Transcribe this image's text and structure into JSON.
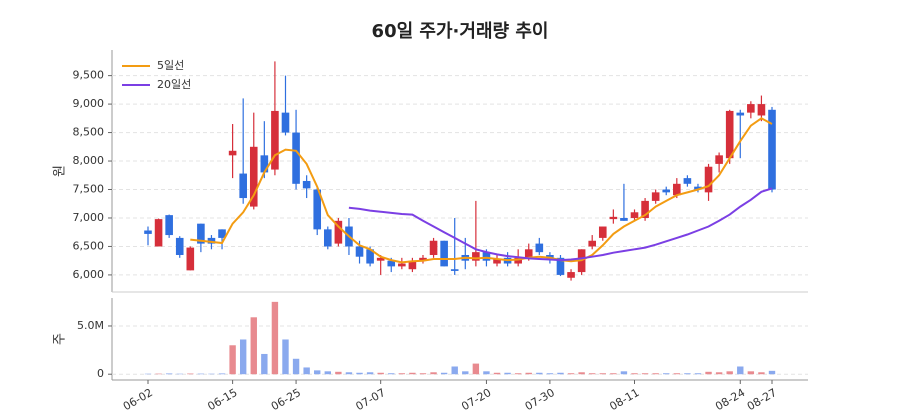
{
  "chart_data": [
    {
      "type": "candlestick",
      "title": "60일 주가·거래량 추이",
      "ylabel": "원",
      "up_color": "#d62f3a",
      "down_color": "#2f6fdf",
      "open": [
        6780,
        6500,
        7050,
        6650,
        6080,
        6900,
        6650,
        6800,
        8100,
        7780,
        7200,
        8100,
        7850,
        8850,
        8500,
        7650,
        7500,
        6800,
        6550,
        6850,
        6500,
        6450,
        6250,
        6250,
        6150,
        6100,
        6250,
        6350,
        6600,
        6100,
        6350,
        6250,
        6400,
        6200,
        6300,
        6200,
        6300,
        6550,
        6350,
        6300,
        5950,
        6050,
        6500,
        6650,
        6980,
        7000,
        7000,
        7000,
        7300,
        7500,
        7400,
        7700,
        7550,
        7450,
        7950,
        8050,
        8850,
        8850,
        8800,
        8900
      ],
      "close": [
        6720,
        6980,
        6700,
        6350,
        6480,
        6550,
        6550,
        6650,
        8180,
        7350,
        8250,
        7800,
        8880,
        8500,
        7600,
        7520,
        6800,
        6500,
        6950,
        6500,
        6320,
        6200,
        6300,
        6150,
        6200,
        6250,
        6300,
        6600,
        6150,
        6070,
        6250,
        6400,
        6250,
        6280,
        6200,
        6300,
        6450,
        6400,
        6300,
        6000,
        6050,
        6450,
        6600,
        6850,
        7020,
        6950,
        7100,
        7300,
        7450,
        7450,
        7600,
        7600,
        7500,
        7900,
        8100,
        8880,
        8800,
        9000,
        9000,
        7500
      ],
      "high": [
        6850,
        6990,
        7060,
        6680,
        6500,
        6900,
        6700,
        6800,
        8650,
        9100,
        8850,
        8700,
        9750,
        9500,
        8900,
        7750,
        7550,
        6850,
        7000,
        7000,
        6600,
        6500,
        6350,
        6300,
        6300,
        6300,
        6350,
        6650,
        6600,
        7000,
        6650,
        7300,
        6450,
        6350,
        6400,
        6450,
        6550,
        6650,
        6400,
        6350,
        6100,
        6450,
        6700,
        6850,
        7150,
        7600,
        7150,
        7350,
        7500,
        7550,
        7700,
        7750,
        7600,
        7950,
        8150,
        8900,
        8900,
        9050,
        9150,
        8950
      ],
      "low": [
        6520,
        6500,
        6650,
        6300,
        6080,
        6400,
        6450,
        6450,
        7700,
        7250,
        7150,
        7700,
        7750,
        8450,
        7500,
        7350,
        6700,
        6450,
        6500,
        6350,
        6200,
        6150,
        6000,
        6050,
        6100,
        6050,
        6200,
        6300,
        6150,
        6000,
        6100,
        6150,
        6150,
        6150,
        6150,
        6150,
        6250,
        6350,
        6200,
        5980,
        5900,
        6000,
        6450,
        6600,
        6900,
        6950,
        6950,
        6950,
        7250,
        7400,
        7350,
        7550,
        7450,
        7300,
        7800,
        7950,
        8050,
        8750,
        8700,
        7450
      ],
      "series": [
        {
          "name": "5일선",
          "color": "#f39c12",
          "values": [
            null,
            null,
            null,
            null,
            6620,
            6600,
            6580,
            6560,
            6900,
            7100,
            7400,
            7800,
            8100,
            8200,
            8180,
            7950,
            7550,
            7050,
            6850,
            6680,
            6520,
            6450,
            6320,
            6260,
            6220,
            6240,
            6250,
            6280,
            6280,
            6280,
            6300,
            6290,
            6300,
            6280,
            6260,
            6270,
            6300,
            6320,
            6300,
            6260,
            6240,
            6260,
            6350,
            6520,
            6720,
            6850,
            6950,
            7050,
            7200,
            7300,
            7400,
            7450,
            7500,
            7560,
            7750,
            8050,
            8350,
            8620,
            8750,
            8650
          ]
        },
        {
          "name": "20일선",
          "color": "#7b3fe4",
          "values": [
            null,
            null,
            null,
            null,
            null,
            null,
            null,
            null,
            null,
            null,
            null,
            null,
            null,
            null,
            null,
            null,
            null,
            null,
            null,
            7180,
            7160,
            7130,
            7110,
            7090,
            7070,
            7060,
            6950,
            6850,
            6750,
            6650,
            6550,
            6450,
            6400,
            6360,
            6330,
            6310,
            6290,
            6280,
            6270,
            6260,
            6270,
            6290,
            6320,
            6350,
            6390,
            6420,
            6450,
            6480,
            6530,
            6590,
            6650,
            6710,
            6780,
            6850,
            6950,
            7060,
            7200,
            7320,
            7460,
            7520
          ]
        }
      ],
      "ylim": [
        5700,
        9950
      ],
      "yticks": [
        {
          "value": 6000,
          "label": "6,000"
        },
        {
          "value": 6500,
          "label": "6,500"
        },
        {
          "value": 7000,
          "label": "7,000"
        },
        {
          "value": 7500,
          "label": "7,500"
        },
        {
          "value": 8000,
          "label": "8,000"
        },
        {
          "value": 8500,
          "label": "8,500"
        },
        {
          "value": 9000,
          "label": "9,000"
        },
        {
          "value": 9500,
          "label": "9,500"
        }
      ],
      "grid": true,
      "legend": "upper-left"
    },
    {
      "type": "bar",
      "ylabel": "주",
      "up_color": "#e88a8f",
      "down_color": "#8aa9ee",
      "categories": [
        "06-02",
        null,
        null,
        null,
        null,
        null,
        null,
        null,
        "06-15",
        null,
        null,
        null,
        null,
        null,
        "06-25",
        null,
        null,
        null,
        null,
        null,
        null,
        null,
        "07-07",
        null,
        null,
        null,
        null,
        null,
        null,
        null,
        null,
        null,
        "07-20",
        null,
        null,
        null,
        null,
        null,
        "07-30",
        null,
        null,
        null,
        null,
        null,
        null,
        null,
        "08-11",
        null,
        null,
        null,
        null,
        null,
        null,
        null,
        null,
        null,
        "08-24",
        null,
        null,
        "08-27"
      ],
      "values": [
        50000,
        60000,
        80000,
        50000,
        70000,
        60000,
        50000,
        80000,
        3000000,
        3600000,
        5900000,
        2100000,
        7500000,
        3600000,
        1600000,
        700000,
        400000,
        300000,
        250000,
        200000,
        150000,
        200000,
        150000,
        100000,
        100000,
        150000,
        100000,
        200000,
        150000,
        800000,
        300000,
        1100000,
        300000,
        150000,
        150000,
        100000,
        150000,
        150000,
        100000,
        150000,
        100000,
        200000,
        100000,
        100000,
        100000,
        300000,
        100000,
        100000,
        100000,
        100000,
        100000,
        100000,
        100000,
        250000,
        200000,
        300000,
        800000,
        300000,
        200000,
        350000
      ],
      "ylim": [
        -600000,
        7900000
      ],
      "yticks": [
        0,
        {
          "value": 5000000,
          "label": "5.0M"
        }
      ],
      "grid": true
    }
  ]
}
